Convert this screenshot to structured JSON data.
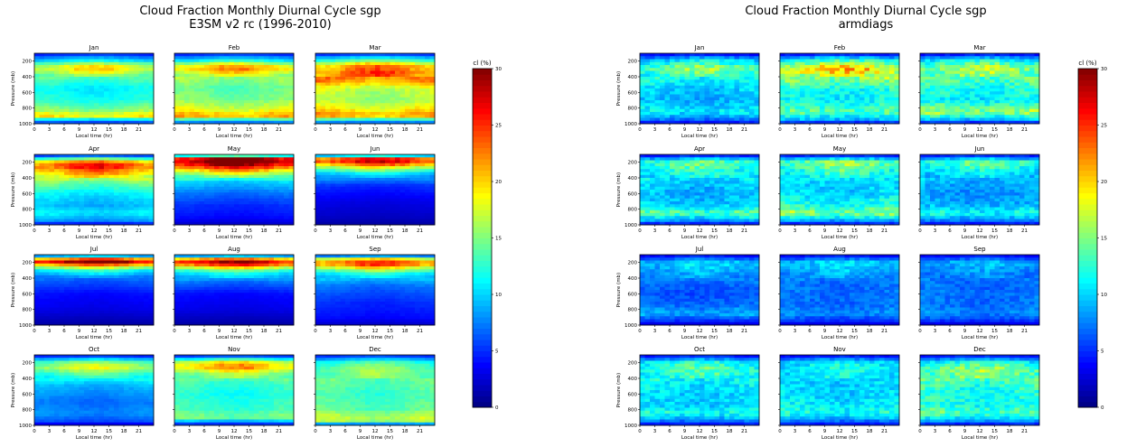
{
  "chart_data": [
    {
      "type": "heatmap",
      "title": "Cloud Fraction Monthly Diurnal Cycle sgp",
      "subtitle": "E3SM v2 rc (1996-2010)",
      "xlabel": "Local time (hr)",
      "ylabel": "Pressure (mb)",
      "x_ticks": [
        "0",
        "3",
        "6",
        "9",
        "12",
        "15",
        "18",
        "21"
      ],
      "y_ticks": [
        "200",
        "400",
        "600",
        "800",
        "1000"
      ],
      "xlim": [
        0,
        24
      ],
      "ylim": [
        1000,
        100
      ],
      "colorbar": {
        "label": "cl (%)",
        "ticks": [
          "0",
          "5",
          "10",
          "15",
          "20",
          "25",
          "30"
        ],
        "range": [
          0,
          30
        ]
      },
      "panels": [
        {
          "month": "Jan",
          "profile": [
            [
              100,
              4
            ],
            [
              200,
              11
            ],
            [
              250,
              17
            ],
            [
              300,
              19
            ],
            [
              400,
              14
            ],
            [
              550,
              11
            ],
            [
              700,
              12
            ],
            [
              850,
              16
            ],
            [
              900,
              20
            ],
            [
              950,
              10
            ],
            [
              1000,
              4
            ]
          ]
        },
        {
          "month": "Feb",
          "profile": [
            [
              100,
              4
            ],
            [
              200,
              12
            ],
            [
              250,
              19
            ],
            [
              300,
              21
            ],
            [
              400,
              16
            ],
            [
              550,
              14
            ],
            [
              700,
              15
            ],
            [
              850,
              19
            ],
            [
              900,
              22
            ],
            [
              950,
              12
            ],
            [
              1000,
              5
            ]
          ]
        },
        {
          "month": "Mar",
          "profile": [
            [
              100,
              4
            ],
            [
              200,
              14
            ],
            [
              250,
              21
            ],
            [
              350,
              23
            ],
            [
              450,
              22
            ],
            [
              550,
              17
            ],
            [
              700,
              16
            ],
            [
              850,
              20
            ],
            [
              900,
              22
            ],
            [
              950,
              12
            ],
            [
              1000,
              5
            ]
          ]
        },
        {
          "month": "Apr",
          "profile": [
            [
              100,
              3
            ],
            [
              200,
              22
            ],
            [
              250,
              25
            ],
            [
              350,
              20
            ],
            [
              450,
              15
            ],
            [
              600,
              11
            ],
            [
              750,
              9
            ],
            [
              850,
              11
            ],
            [
              950,
              8
            ],
            [
              1000,
              3
            ]
          ]
        },
        {
          "month": "May",
          "profile": [
            [
              100,
              3
            ],
            [
              150,
              28
            ],
            [
              200,
              30
            ],
            [
              260,
              25
            ],
            [
              330,
              18
            ],
            [
              450,
              10
            ],
            [
              600,
              7
            ],
            [
              750,
              5
            ],
            [
              900,
              4
            ],
            [
              1000,
              2
            ]
          ]
        },
        {
          "month": "Jun",
          "profile": [
            [
              100,
              3
            ],
            [
              150,
              24
            ],
            [
              200,
              26
            ],
            [
              260,
              18
            ],
            [
              350,
              10
            ],
            [
              500,
              5
            ],
            [
              700,
              3
            ],
            [
              900,
              2
            ],
            [
              1000,
              1
            ]
          ]
        },
        {
          "month": "Jul",
          "profile": [
            [
              100,
              3
            ],
            [
              170,
              27
            ],
            [
              200,
              29
            ],
            [
              240,
              20
            ],
            [
              300,
              12
            ],
            [
              400,
              7
            ],
            [
              600,
              4
            ],
            [
              800,
              3
            ],
            [
              1000,
              1
            ]
          ]
        },
        {
          "month": "Aug",
          "profile": [
            [
              100,
              3
            ],
            [
              170,
              26
            ],
            [
              210,
              28
            ],
            [
              250,
              20
            ],
            [
              320,
              12
            ],
            [
              450,
              7
            ],
            [
              600,
              4
            ],
            [
              800,
              3
            ],
            [
              1000,
              1
            ]
          ]
        },
        {
          "month": "Sep",
          "profile": [
            [
              100,
              3
            ],
            [
              170,
              22
            ],
            [
              220,
              24
            ],
            [
              280,
              17
            ],
            [
              350,
              11
            ],
            [
              500,
              7
            ],
            [
              700,
              5
            ],
            [
              900,
              4
            ],
            [
              1000,
              2
            ]
          ]
        },
        {
          "month": "Oct",
          "profile": [
            [
              100,
              3
            ],
            [
              200,
              15
            ],
            [
              270,
              17
            ],
            [
              350,
              13
            ],
            [
              500,
              9
            ],
            [
              700,
              7
            ],
            [
              850,
              8
            ],
            [
              950,
              6
            ],
            [
              1000,
              2
            ]
          ]
        },
        {
          "month": "Nov",
          "profile": [
            [
              100,
              3
            ],
            [
              200,
              19
            ],
            [
              260,
              21
            ],
            [
              330,
              16
            ],
            [
              450,
              13
            ],
            [
              600,
              12
            ],
            [
              800,
              13
            ],
            [
              900,
              15
            ],
            [
              950,
              9
            ],
            [
              1000,
              3
            ]
          ]
        },
        {
          "month": "Dec",
          "profile": [
            [
              100,
              4
            ],
            [
              200,
              13
            ],
            [
              300,
              15
            ],
            [
              450,
              14
            ],
            [
              600,
              13
            ],
            [
              800,
              14
            ],
            [
              900,
              17
            ],
            [
              950,
              16
            ],
            [
              1000,
              4
            ]
          ]
        }
      ]
    },
    {
      "type": "heatmap",
      "title": "Cloud Fraction Monthly Diurnal Cycle sgp",
      "subtitle": "armdiags",
      "xlabel": "Local time (hr)",
      "ylabel": "Pressure (mb)",
      "x_ticks": [
        "0",
        "3",
        "6",
        "9",
        "12",
        "15",
        "18",
        "21"
      ],
      "y_ticks": [
        "200",
        "400",
        "600",
        "800",
        "1000"
      ],
      "xlim": [
        0,
        24
      ],
      "ylim": [
        1000,
        100
      ],
      "colorbar": {
        "label": "cl (%)",
        "ticks": [
          "0",
          "5",
          "10",
          "15",
          "20",
          "25",
          "30"
        ],
        "range": [
          0,
          30
        ]
      },
      "panels": [
        {
          "month": "Jan",
          "profile": [
            [
              100,
              3
            ],
            [
              200,
              11
            ],
            [
              300,
              15
            ],
            [
              400,
              12
            ],
            [
              550,
              10
            ],
            [
              700,
              9
            ],
            [
              850,
              11
            ],
            [
              950,
              7
            ],
            [
              1000,
              3
            ]
          ]
        },
        {
          "month": "Feb",
          "profile": [
            [
              100,
              3
            ],
            [
              200,
              13
            ],
            [
              300,
              20
            ],
            [
              400,
              16
            ],
            [
              550,
              12
            ],
            [
              700,
              11
            ],
            [
              850,
              14
            ],
            [
              950,
              9
            ],
            [
              1000,
              3
            ]
          ]
        },
        {
          "month": "Mar",
          "profile": [
            [
              100,
              3
            ],
            [
              200,
              12
            ],
            [
              300,
              16
            ],
            [
              400,
              14
            ],
            [
              550,
              12
            ],
            [
              700,
              11
            ],
            [
              850,
              16
            ],
            [
              950,
              9
            ],
            [
              1000,
              3
            ]
          ]
        },
        {
          "month": "Apr",
          "profile": [
            [
              100,
              3
            ],
            [
              200,
              14
            ],
            [
              300,
              12
            ],
            [
              450,
              10
            ],
            [
              600,
              9
            ],
            [
              750,
              10
            ],
            [
              850,
              14
            ],
            [
              950,
              8
            ],
            [
              1000,
              3
            ]
          ]
        },
        {
          "month": "May",
          "profile": [
            [
              100,
              3
            ],
            [
              200,
              15
            ],
            [
              300,
              13
            ],
            [
              450,
              10
            ],
            [
              600,
              10
            ],
            [
              750,
              12
            ],
            [
              850,
              16
            ],
            [
              950,
              8
            ],
            [
              1000,
              3
            ]
          ]
        },
        {
          "month": "Jun",
          "profile": [
            [
              100,
              3
            ],
            [
              200,
              14
            ],
            [
              300,
              11
            ],
            [
              450,
              9
            ],
            [
              600,
              8
            ],
            [
              750,
              9
            ],
            [
              850,
              12
            ],
            [
              950,
              7
            ],
            [
              1000,
              3
            ]
          ]
        },
        {
          "month": "Jul",
          "profile": [
            [
              100,
              3
            ],
            [
              200,
              10
            ],
            [
              300,
              9
            ],
            [
              450,
              7
            ],
            [
              600,
              6
            ],
            [
              750,
              7
            ],
            [
              850,
              9
            ],
            [
              950,
              5
            ],
            [
              1000,
              2
            ]
          ]
        },
        {
          "month": "Aug",
          "profile": [
            [
              100,
              3
            ],
            [
              200,
              10
            ],
            [
              300,
              9
            ],
            [
              450,
              7
            ],
            [
              600,
              7
            ],
            [
              750,
              7
            ],
            [
              850,
              8
            ],
            [
              950,
              5
            ],
            [
              1000,
              2
            ]
          ]
        },
        {
          "month": "Sep",
          "profile": [
            [
              100,
              3
            ],
            [
              200,
              9
            ],
            [
              300,
              8
            ],
            [
              450,
              7
            ],
            [
              600,
              7
            ],
            [
              750,
              7
            ],
            [
              850,
              8
            ],
            [
              950,
              5
            ],
            [
              1000,
              2
            ]
          ]
        },
        {
          "month": "Oct",
          "profile": [
            [
              100,
              3
            ],
            [
              200,
              12
            ],
            [
              300,
              13
            ],
            [
              450,
              11
            ],
            [
              600,
              10
            ],
            [
              750,
              10
            ],
            [
              850,
              12
            ],
            [
              950,
              7
            ],
            [
              1000,
              3
            ]
          ]
        },
        {
          "month": "Nov",
          "profile": [
            [
              100,
              3
            ],
            [
              200,
              11
            ],
            [
              300,
              11
            ],
            [
              450,
              10
            ],
            [
              600,
              10
            ],
            [
              750,
              11
            ],
            [
              850,
              12
            ],
            [
              950,
              7
            ],
            [
              1000,
              3
            ]
          ]
        },
        {
          "month": "Dec",
          "profile": [
            [
              100,
              3
            ],
            [
              200,
              12
            ],
            [
              300,
              15
            ],
            [
              450,
              13
            ],
            [
              600,
              12
            ],
            [
              750,
              12
            ],
            [
              850,
              14
            ],
            [
              950,
              8
            ],
            [
              1000,
              3
            ]
          ]
        }
      ]
    }
  ]
}
